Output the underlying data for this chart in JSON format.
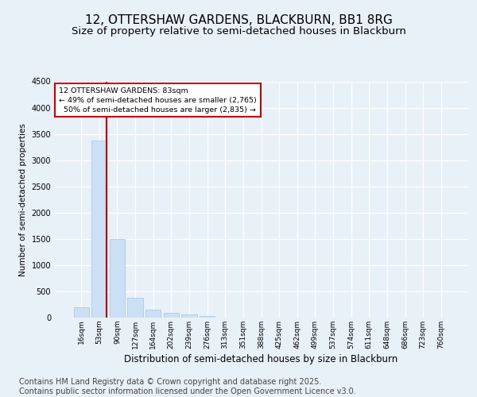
{
  "title_line1": "12, OTTERSHAW GARDENS, BLACKBURN, BB1 8RG",
  "title_line2": "Size of property relative to semi-detached houses in Blackburn",
  "xlabel": "Distribution of semi-detached houses by size in Blackburn",
  "ylabel": "Number of semi-detached properties",
  "categories": [
    "16sqm",
    "53sqm",
    "90sqm",
    "127sqm",
    "164sqm",
    "202sqm",
    "239sqm",
    "276sqm",
    "313sqm",
    "351sqm",
    "388sqm",
    "425sqm",
    "462sqm",
    "499sqm",
    "537sqm",
    "574sqm",
    "611sqm",
    "648sqm",
    "686sqm",
    "723sqm",
    "760sqm"
  ],
  "values": [
    200,
    3380,
    1500,
    380,
    155,
    90,
    55,
    35,
    5,
    0,
    0,
    0,
    0,
    0,
    0,
    0,
    0,
    0,
    0,
    0,
    0
  ],
  "bar_color": "#cce0f5",
  "bar_edge_color": "#a0c4e8",
  "vline_color": "#cc0000",
  "vline_x_index": 1,
  "annotation_text": "12 OTTERSHAW GARDENS: 83sqm\n← 49% of semi-detached houses are smaller (2,765)\n  50% of semi-detached houses are larger (2,835) →",
  "annotation_box_color": "#ffffff",
  "annotation_box_edge": "#cc0000",
  "ylim": [
    0,
    4500
  ],
  "yticks": [
    0,
    500,
    1000,
    1500,
    2000,
    2500,
    3000,
    3500,
    4000,
    4500
  ],
  "footer_text": "Contains HM Land Registry data © Crown copyright and database right 2025.\nContains public sector information licensed under the Open Government Licence v3.0.",
  "background_color": "#e8f0f8",
  "plot_bg_color": "#e8f0f8",
  "grid_color": "#ffffff",
  "title_fontsize": 11,
  "subtitle_fontsize": 9.5,
  "footer_fontsize": 7,
  "xlabel_fontsize": 8.5,
  "ylabel_fontsize": 7.5,
  "tick_fontsize": 6.5,
  "ytick_fontsize": 7
}
